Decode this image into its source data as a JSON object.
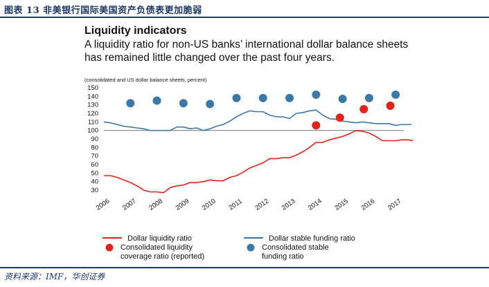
{
  "header": {
    "figure_title": "图表 13 非美银行国际美国资产负债表更加脆弱"
  },
  "footer": {
    "source": "资料来源：IMF，华创证券"
  },
  "chart_data": {
    "type": "line",
    "title": "Liquidity indicators",
    "subtitle": "A liquidity ratio for non-US banks’ international dollar balance sheets has remained little changed over the past four years.",
    "note": "(consolidated and US dollar balance sheets, percent)",
    "ylim": [
      30,
      150
    ],
    "yticks": [
      30,
      40,
      50,
      60,
      70,
      80,
      90,
      100,
      110,
      120,
      130,
      140,
      150
    ],
    "xlim": [
      2006,
      2017.7
    ],
    "xticks": [
      "2006",
      "2007",
      "2008",
      "2009",
      "2010",
      "2011",
      "2012",
      "2013",
      "2014",
      "2015",
      "2016",
      "2017"
    ],
    "reference_line": 100,
    "colors": {
      "dollar_liquidity_ratio": "#e2231a",
      "dollar_stable_funding_ratio": "#3a78a8",
      "consolidated_lcr": "#e2231a",
      "consolidated_nsfr": "#3a78a8",
      "reference": "#777777"
    },
    "series": [
      {
        "name": "Dollar liquidity ratio",
        "kind": "line",
        "color_key": "dollar_liquidity_ratio",
        "points": [
          [
            2006.0,
            47
          ],
          [
            2006.25,
            47
          ],
          [
            2006.5,
            45
          ],
          [
            2006.75,
            42
          ],
          [
            2007.0,
            39
          ],
          [
            2007.25,
            35
          ],
          [
            2007.5,
            30
          ],
          [
            2007.75,
            28
          ],
          [
            2008.0,
            28
          ],
          [
            2008.25,
            27
          ],
          [
            2008.5,
            33
          ],
          [
            2008.75,
            35
          ],
          [
            2009.0,
            36
          ],
          [
            2009.25,
            39
          ],
          [
            2009.5,
            39
          ],
          [
            2009.75,
            40
          ],
          [
            2010.0,
            42
          ],
          [
            2010.25,
            41
          ],
          [
            2010.5,
            41
          ],
          [
            2010.75,
            45
          ],
          [
            2011.0,
            47
          ],
          [
            2011.25,
            51
          ],
          [
            2011.5,
            56
          ],
          [
            2011.75,
            59
          ],
          [
            2012.0,
            62
          ],
          [
            2012.25,
            67
          ],
          [
            2012.5,
            67
          ],
          [
            2012.75,
            68
          ],
          [
            2013.0,
            68
          ],
          [
            2013.25,
            71
          ],
          [
            2013.5,
            75
          ],
          [
            2013.75,
            80
          ],
          [
            2014.0,
            86
          ],
          [
            2014.25,
            86
          ],
          [
            2014.5,
            89
          ],
          [
            2014.75,
            91
          ],
          [
            2015.0,
            93
          ],
          [
            2015.25,
            96
          ],
          [
            2015.5,
            100
          ],
          [
            2015.75,
            99
          ],
          [
            2016.0,
            97
          ],
          [
            2016.25,
            93
          ],
          [
            2016.5,
            88
          ],
          [
            2016.75,
            88
          ],
          [
            2017.0,
            88
          ],
          [
            2017.25,
            89
          ],
          [
            2017.5,
            89
          ],
          [
            2017.65,
            88
          ]
        ]
      },
      {
        "name": "Dollar stable funding ratio",
        "kind": "line",
        "color_key": "dollar_stable_funding_ratio",
        "points": [
          [
            2006.0,
            110
          ],
          [
            2006.25,
            109
          ],
          [
            2006.5,
            107
          ],
          [
            2006.75,
            105
          ],
          [
            2007.0,
            104
          ],
          [
            2007.25,
            103
          ],
          [
            2007.5,
            102
          ],
          [
            2007.75,
            100
          ],
          [
            2008.0,
            100
          ],
          [
            2008.25,
            100
          ],
          [
            2008.5,
            100
          ],
          [
            2008.75,
            104
          ],
          [
            2009.0,
            104
          ],
          [
            2009.25,
            102
          ],
          [
            2009.5,
            103
          ],
          [
            2009.75,
            100
          ],
          [
            2010.0,
            102
          ],
          [
            2010.25,
            105
          ],
          [
            2010.5,
            107
          ],
          [
            2010.75,
            111
          ],
          [
            2011.0,
            116
          ],
          [
            2011.25,
            120
          ],
          [
            2011.5,
            123
          ],
          [
            2011.75,
            122
          ],
          [
            2012.0,
            122
          ],
          [
            2012.25,
            118
          ],
          [
            2012.5,
            116
          ],
          [
            2012.75,
            116
          ],
          [
            2013.0,
            114
          ],
          [
            2013.25,
            120
          ],
          [
            2013.5,
            121
          ],
          [
            2013.75,
            123
          ],
          [
            2014.0,
            124
          ],
          [
            2014.25,
            118
          ],
          [
            2014.5,
            114
          ],
          [
            2014.75,
            113
          ],
          [
            2015.0,
            111
          ],
          [
            2015.25,
            110
          ],
          [
            2015.5,
            109
          ],
          [
            2015.75,
            110
          ],
          [
            2016.0,
            109
          ],
          [
            2016.25,
            108
          ],
          [
            2016.5,
            108
          ],
          [
            2016.75,
            108
          ],
          [
            2017.0,
            106
          ],
          [
            2017.25,
            107
          ],
          [
            2017.6,
            107
          ]
        ]
      },
      {
        "name": "Consolidated liquidity coverage ratio (reported)",
        "legend_lines": [
          "Consolidated liquidity",
          "coverage ratio (reported)"
        ],
        "kind": "dots",
        "color_key": "consolidated_lcr",
        "points": [
          [
            2014.0,
            106
          ],
          [
            2014.9,
            115
          ],
          [
            2015.8,
            125
          ],
          [
            2016.8,
            129
          ]
        ]
      },
      {
        "name": "Consolidated stable funding ratio",
        "legend_lines": [
          "Consolidated stable",
          "funding ratio"
        ],
        "kind": "dots",
        "color_key": "consolidated_nsfr",
        "points": [
          [
            2007.0,
            132
          ],
          [
            2008.0,
            135
          ],
          [
            2009.0,
            132
          ],
          [
            2010.0,
            131
          ],
          [
            2011.0,
            138
          ],
          [
            2012.0,
            138
          ],
          [
            2013.0,
            138
          ],
          [
            2014.0,
            142
          ],
          [
            2015.0,
            137
          ],
          [
            2016.0,
            138
          ],
          [
            2017.0,
            142
          ]
        ]
      }
    ]
  }
}
